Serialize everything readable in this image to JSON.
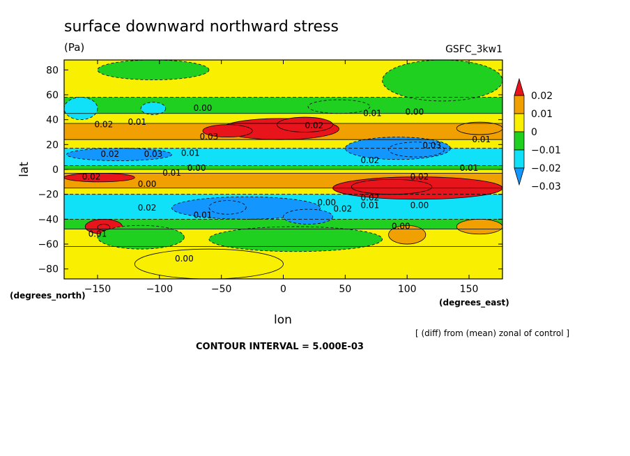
{
  "chart_data": {
    "type": "heatmap",
    "title": "surface downward northward stress",
    "units": "(Pa)",
    "dataset": "GSFC_3kw1",
    "xlabel": "lon",
    "ylabel": "lat",
    "x_units": "(degrees_east)",
    "y_units": "(degrees_north)",
    "xlim": [
      -177,
      177
    ],
    "ylim": [
      -88,
      88
    ],
    "x_ticks": [
      -150,
      -100,
      -50,
      0,
      50,
      100,
      150
    ],
    "y_ticks": [
      80,
      60,
      40,
      20,
      0,
      -20,
      -40,
      -60,
      -80
    ],
    "x_tick_labels": [
      "−150",
      "−100",
      "−50",
      "0",
      "50",
      "100",
      "150"
    ],
    "y_tick_labels": [
      "80",
      "60",
      "40",
      "20",
      "0",
      "−20",
      "−40",
      "−60",
      "−80"
    ],
    "note": "[ (diff) from (mean) zonal of control ]",
    "contour_interval": "CONTOUR INTERVAL = 5.000E-03",
    "legend": {
      "labels": [
        "0.02",
        "0.01",
        "0",
        "−0.01",
        "−0.02",
        "−0.03"
      ],
      "colors": [
        "#e8141c",
        "#f0a000",
        "#f8f000",
        "#20d020",
        "#10e0f8",
        "#1496ff"
      ]
    },
    "bands": [
      {
        "lat": [
          58,
          90
        ],
        "v": 0.001
      },
      {
        "lat": [
          45,
          58
        ],
        "v": -0.006
      },
      {
        "lat": [
          37,
          45
        ],
        "v": 0.008
      },
      {
        "lat": [
          24,
          37
        ],
        "v": 0.017
      },
      {
        "lat": [
          17,
          24
        ],
        "v": 0.002
      },
      {
        "lat": [
          3,
          17
        ],
        "v": -0.016
      },
      {
        "lat": [
          0,
          3
        ],
        "v": -0.004
      },
      {
        "lat": [
          -3,
          0
        ],
        "v": 0.001
      },
      {
        "lat": [
          -15,
          -3
        ],
        "v": 0.018
      },
      {
        "lat": [
          -20,
          -15
        ],
        "v": 0.002
      },
      {
        "lat": [
          -40,
          -20
        ],
        "v": -0.017
      },
      {
        "lat": [
          -48,
          -40
        ],
        "v": -0.004
      },
      {
        "lat": [
          -62,
          -48
        ],
        "v": 0.003
      },
      {
        "lat": [
          -90,
          -62
        ],
        "v": 0.001
      }
    ],
    "features": [
      {
        "lon": [
          -50,
          45
        ],
        "lat": [
          24,
          41
        ],
        "v": 0.022
      },
      {
        "lon": [
          -65,
          -25
        ],
        "lat": [
          26,
          36
        ],
        "v": 0.031
      },
      {
        "lon": [
          -5,
          40
        ],
        "lat": [
          30,
          42
        ],
        "v": 0.027
      },
      {
        "lon": [
          50,
          135
        ],
        "lat": [
          8,
          26
        ],
        "v": -0.022
      },
      {
        "lon": [
          85,
          130
        ],
        "lat": [
          10,
          22
        ],
        "v": -0.031
      },
      {
        "lon": [
          -175,
          -90
        ],
        "lat": [
          7,
          17
        ],
        "v": -0.021
      },
      {
        "lon": [
          40,
          177
        ],
        "lat": [
          -24,
          -6
        ],
        "v": 0.022
      },
      {
        "lon": [
          55,
          120
        ],
        "lat": [
          -20,
          -8
        ],
        "v": 0.031
      },
      {
        "lon": [
          -177,
          -120
        ],
        "lat": [
          -10,
          -3
        ],
        "v": 0.021
      },
      {
        "lon": [
          -90,
          30
        ],
        "lat": [
          -40,
          -22
        ],
        "v": -0.022
      },
      {
        "lon": [
          -60,
          -30
        ],
        "lat": [
          -36,
          -25
        ],
        "v": -0.031
      },
      {
        "lon": [
          0,
          40
        ],
        "lat": [
          -44,
          -32
        ],
        "v": -0.026
      },
      {
        "lon": [
          -160,
          -130
        ],
        "lat": [
          -52,
          -40
        ],
        "v": 0.022
      },
      {
        "lon": [
          -150,
          -140
        ],
        "lat": [
          -49,
          -44
        ],
        "v": 0.031
      },
      {
        "lon": [
          140,
          177
        ],
        "lat": [
          -52,
          -40
        ],
        "v": 0.013
      },
      {
        "lon": [
          85,
          115
        ],
        "lat": [
          -60,
          -45
        ],
        "v": 0.011
      },
      {
        "lon": [
          -120,
          0
        ],
        "lat": [
          -88,
          -64
        ],
        "v": 0.002
      },
      {
        "lon": [
          -150,
          -80
        ],
        "lat": [
          -64,
          -45
        ],
        "v": -0.004
      },
      {
        "lon": [
          -60,
          80
        ],
        "lat": [
          -66,
          -46
        ],
        "v": -0.004
      },
      {
        "lon": [
          -177,
          -150
        ],
        "lat": [
          40,
          58
        ],
        "v": -0.017
      },
      {
        "lon": [
          -115,
          -95
        ],
        "lat": [
          44,
          54
        ],
        "v": -0.012
      },
      {
        "lon": [
          -150,
          -60
        ],
        "lat": [
          72,
          88
        ],
        "v": -0.004
      },
      {
        "lon": [
          80,
          177
        ],
        "lat": [
          55,
          88
        ],
        "v": -0.004
      },
      {
        "lon": [
          20,
          70
        ],
        "lat": [
          45,
          56
        ],
        "v": -0.005
      },
      {
        "lon": [
          140,
          177
        ],
        "lat": [
          28,
          38
        ],
        "v": 0.012
      }
    ],
    "contour_labels": [
      {
        "t": "0.00",
        "lon": -65,
        "lat": 47
      },
      {
        "t": "0.01",
        "lon": 72,
        "lat": 43
      },
      {
        "t": "0.00",
        "lon": 106,
        "lat": 44
      },
      {
        "t": "0.02",
        "lon": -145,
        "lat": 34
      },
      {
        "t": "0.01",
        "lon": -118,
        "lat": 36
      },
      {
        "t": "0.03",
        "lon": -60,
        "lat": 24
      },
      {
        "t": "0.02",
        "lon": 25,
        "lat": 33
      },
      {
        "t": "0.01",
        "lon": 160,
        "lat": 22
      },
      {
        "t": "0.02",
        "lon": -140,
        "lat": 10
      },
      {
        "t": "0.03",
        "lon": -105,
        "lat": 10
      },
      {
        "t": "0.01",
        "lon": -75,
        "lat": 11
      },
      {
        "t": "0.03",
        "lon": 120,
        "lat": 17
      },
      {
        "t": "0.02",
        "lon": 70,
        "lat": 5
      },
      {
        "t": "0.00",
        "lon": -70,
        "lat": -1
      },
      {
        "t": "0.01",
        "lon": 150,
        "lat": -1
      },
      {
        "t": "0.01",
        "lon": -90,
        "lat": -5
      },
      {
        "t": "0.02",
        "lon": -155,
        "lat": -8
      },
      {
        "t": "0.00",
        "lon": -110,
        "lat": -14
      },
      {
        "t": "0.02",
        "lon": 110,
        "lat": -8
      },
      {
        "t": "0.02",
        "lon": 70,
        "lat": -25
      },
      {
        "t": "0.01",
        "lon": 70,
        "lat": -31
      },
      {
        "t": "0.00",
        "lon": 110,
        "lat": -31
      },
      {
        "t": "0.00",
        "lon": 35,
        "lat": -29
      },
      {
        "t": "0.02",
        "lon": 48,
        "lat": -34
      },
      {
        "t": "0.02",
        "lon": -110,
        "lat": -33
      },
      {
        "t": "0.01",
        "lon": -65,
        "lat": -39
      },
      {
        "t": "0.00",
        "lon": 95,
        "lat": -48
      },
      {
        "t": "0.01",
        "lon": -150,
        "lat": -54
      },
      {
        "t": "0.00",
        "lon": -80,
        "lat": -74
      }
    ]
  }
}
